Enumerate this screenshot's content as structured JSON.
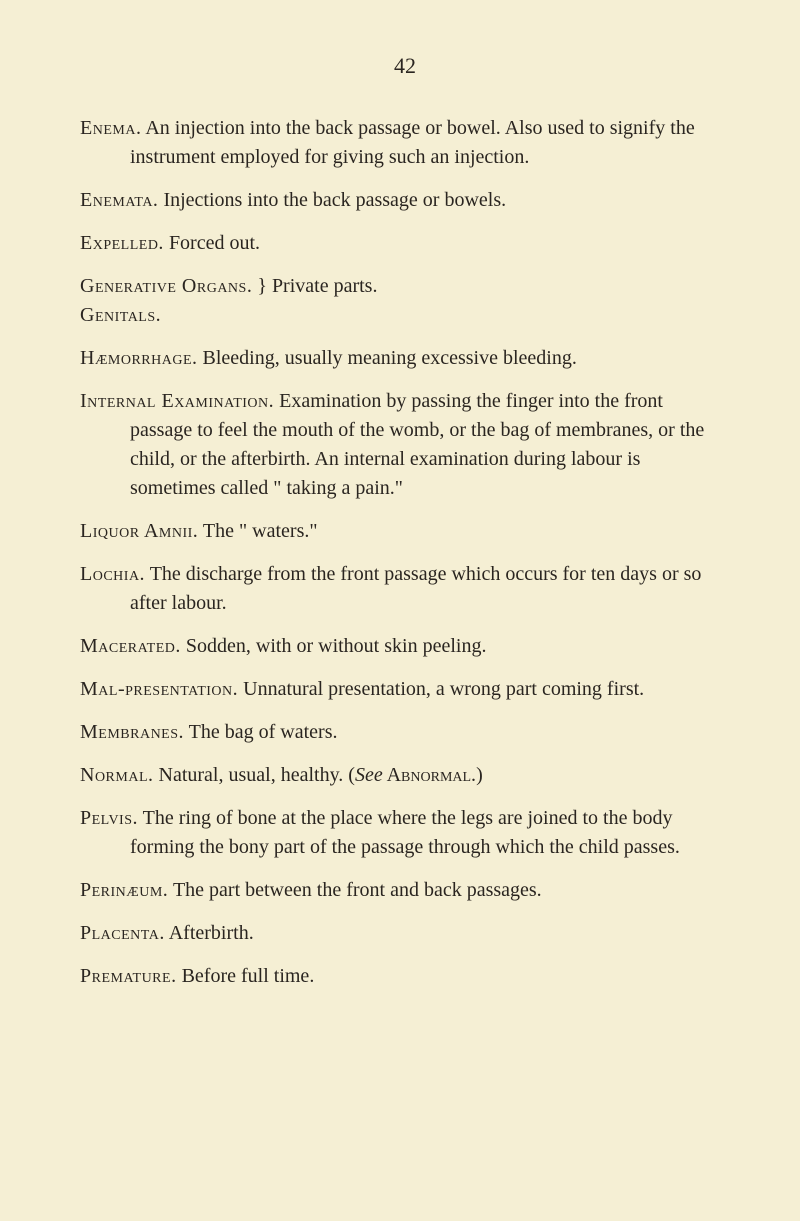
{
  "page_number": "42",
  "entries": [
    {
      "term": "Enema.",
      "definition": "An injection into the back passage or bowel. Also used to signify the instrument employed for giving such an injection."
    },
    {
      "term": "Enemata.",
      "definition": "Injections into the back passage or bowels."
    },
    {
      "term": "Expelled.",
      "definition": "Forced out."
    }
  ],
  "grouped_entry": {
    "line1_term": "Generative Organs.",
    "line2_term": "Genitals.",
    "definition": "Private parts."
  },
  "entries2": [
    {
      "term": "Hæmorrhage.",
      "definition": "Bleeding, usually meaning excessive bleeding."
    },
    {
      "term": "Internal Examination.",
      "definition": "Examination by passing the finger into the front passage to feel the mouth of the womb, or the bag of membranes, or the child, or the afterbirth. An internal examination during labour is sometimes called \" taking a pain.\""
    },
    {
      "term": "Liquor Amnii.",
      "definition": "The \" waters.\""
    },
    {
      "term": "Lochia.",
      "definition": "The discharge from the front passage which occurs for ten days or so after labour."
    },
    {
      "term": "Macerated.",
      "definition": "Sodden, with or without skin peeling."
    },
    {
      "term": "Mal-presentation.",
      "definition": "Unnatural presentation, a wrong part coming first."
    },
    {
      "term": "Membranes.",
      "definition": "The bag of waters."
    }
  ],
  "normal_entry": {
    "term": "Normal.",
    "def_before": "Natural, usual, healthy. (",
    "see_italic": "See",
    "see_ref": " Abnormal.",
    "def_after": ")"
  },
  "entries3": [
    {
      "term": "Pelvis.",
      "definition": "The ring of bone at the place where the legs are joined to the body forming the bony part of the passage through which the child passes."
    },
    {
      "term": "Perinæum.",
      "definition": "The part between the front and back passages."
    },
    {
      "term": "Placenta.",
      "definition": "Afterbirth."
    },
    {
      "term": "Premature.",
      "definition": "Before full time."
    }
  ]
}
